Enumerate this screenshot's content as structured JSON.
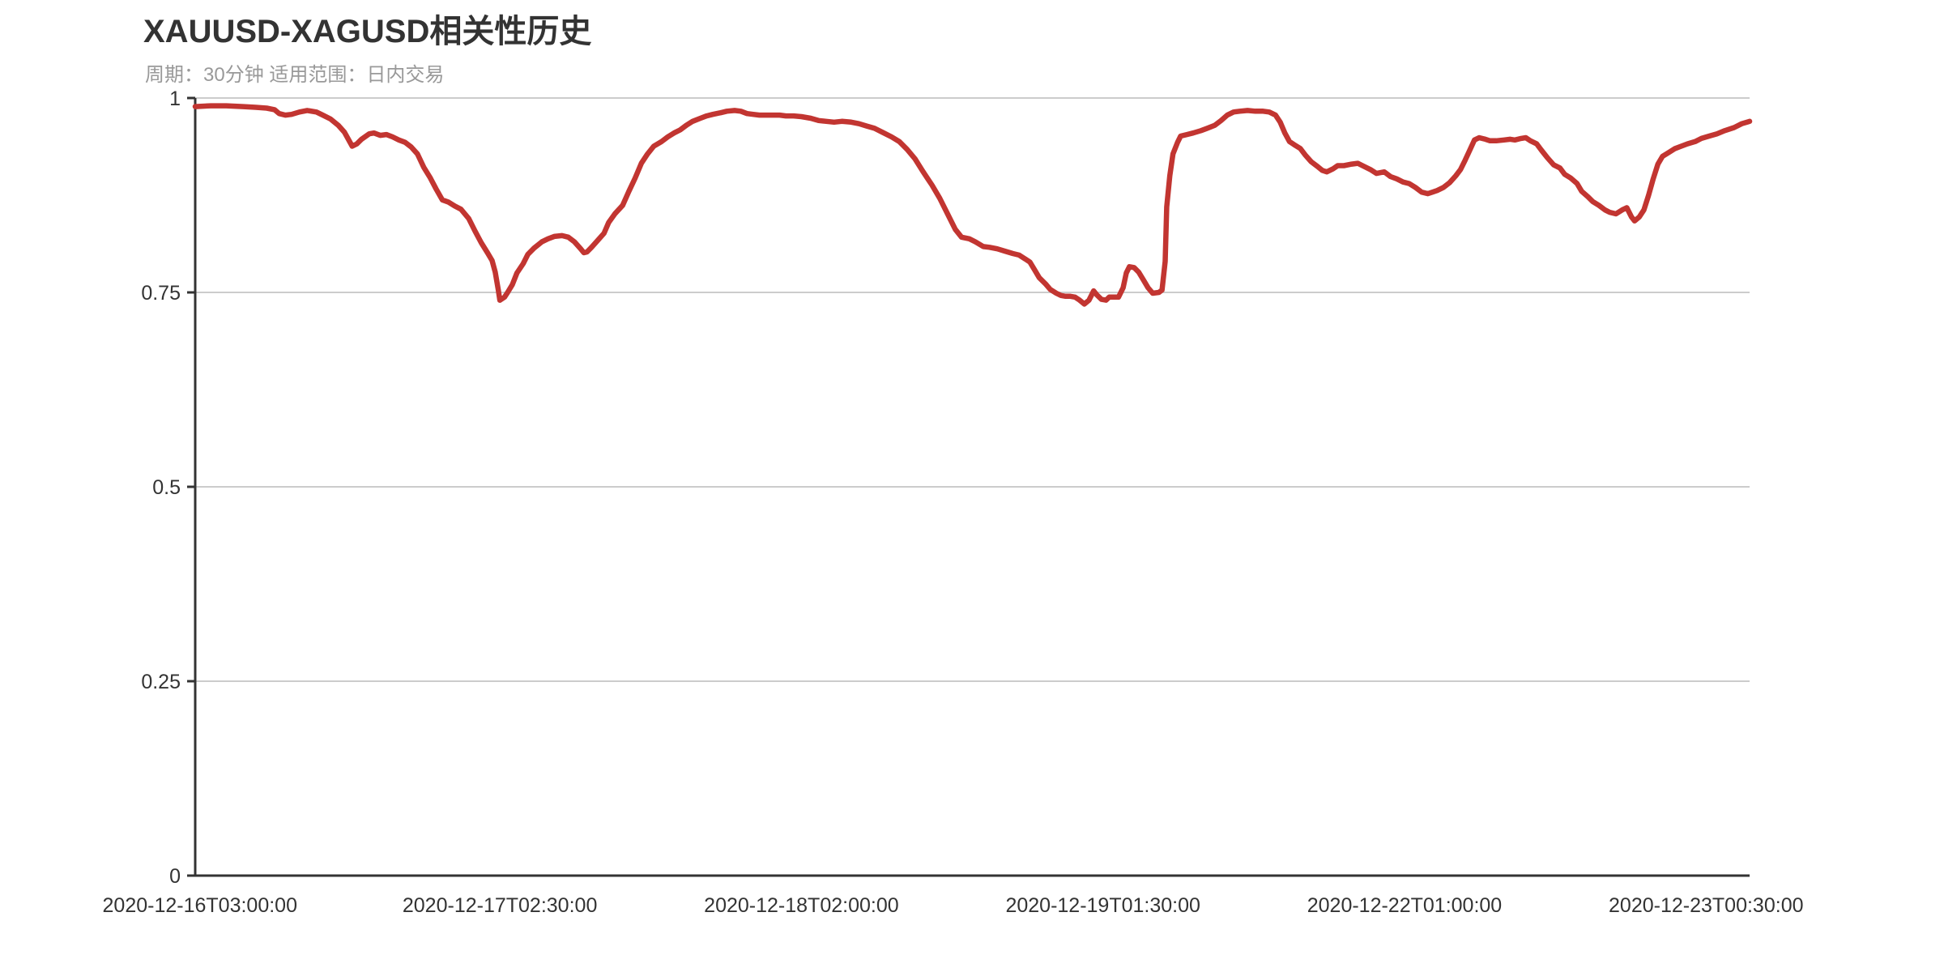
{
  "chart_data": {
    "type": "line",
    "title": "XAUUSD-XAGUSD相关性历史",
    "subtitle": "周期：30分钟 适用范围：日内交易",
    "xlabel": "",
    "ylabel": "",
    "ylim": [
      0,
      1
    ],
    "grid": true,
    "legend_position": "none",
    "colors": {
      "line": "#c23531",
      "grid": "#cccccc",
      "axis": "#333333",
      "label": "#333333",
      "title_text": "#333333",
      "subtitle_text": "#999999",
      "background": "#ffffff"
    },
    "yticks": [
      {
        "value": 0,
        "label": "0"
      },
      {
        "value": 0.25,
        "label": "0.25"
      },
      {
        "value": 0.5,
        "label": "0.5"
      },
      {
        "value": 0.75,
        "label": "0.75"
      },
      {
        "value": 1,
        "label": "1"
      }
    ],
    "xticks": [
      {
        "pos": 0.003,
        "label": "2020-12-16T03:00:00"
      },
      {
        "pos": 0.196,
        "label": "2020-12-17T02:30:00"
      },
      {
        "pos": 0.39,
        "label": "2020-12-18T02:00:00"
      },
      {
        "pos": 0.584,
        "label": "2020-12-19T01:30:00"
      },
      {
        "pos": 0.778,
        "label": "2020-12-22T01:00:00"
      },
      {
        "pos": 0.972,
        "label": "2020-12-23T00:30:00"
      }
    ],
    "series": [
      {
        "name": "XAUUSD-XAGUSD相关性",
        "points": [
          [
            0.0,
            0.989
          ],
          [
            0.01,
            0.99
          ],
          [
            0.02,
            0.99
          ],
          [
            0.031,
            0.989
          ],
          [
            0.039,
            0.988
          ],
          [
            0.046,
            0.987
          ],
          [
            0.051,
            0.985
          ],
          [
            0.054,
            0.98
          ],
          [
            0.058,
            0.978
          ],
          [
            0.062,
            0.979
          ],
          [
            0.067,
            0.982
          ],
          [
            0.072,
            0.984
          ],
          [
            0.078,
            0.982
          ],
          [
            0.082,
            0.978
          ],
          [
            0.087,
            0.973
          ],
          [
            0.092,
            0.965
          ],
          [
            0.096,
            0.956
          ],
          [
            0.101,
            0.938
          ],
          [
            0.104,
            0.941
          ],
          [
            0.107,
            0.947
          ],
          [
            0.112,
            0.954
          ],
          [
            0.115,
            0.955
          ],
          [
            0.119,
            0.952
          ],
          [
            0.123,
            0.953
          ],
          [
            0.127,
            0.95
          ],
          [
            0.131,
            0.946
          ],
          [
            0.135,
            0.943
          ],
          [
            0.139,
            0.937
          ],
          [
            0.143,
            0.928
          ],
          [
            0.147,
            0.911
          ],
          [
            0.151,
            0.898
          ],
          [
            0.155,
            0.883
          ],
          [
            0.159,
            0.869
          ],
          [
            0.163,
            0.866
          ],
          [
            0.167,
            0.861
          ],
          [
            0.171,
            0.857
          ],
          [
            0.176,
            0.845
          ],
          [
            0.18,
            0.829
          ],
          [
            0.184,
            0.814
          ],
          [
            0.188,
            0.801
          ],
          [
            0.191,
            0.791
          ],
          [
            0.193,
            0.776
          ],
          [
            0.195,
            0.753
          ],
          [
            0.196,
            0.74
          ],
          [
            0.199,
            0.744
          ],
          [
            0.201,
            0.75
          ],
          [
            0.204,
            0.76
          ],
          [
            0.207,
            0.775
          ],
          [
            0.211,
            0.787
          ],
          [
            0.214,
            0.799
          ],
          [
            0.218,
            0.807
          ],
          [
            0.223,
            0.815
          ],
          [
            0.227,
            0.819
          ],
          [
            0.231,
            0.822
          ],
          [
            0.236,
            0.823
          ],
          [
            0.24,
            0.821
          ],
          [
            0.244,
            0.815
          ],
          [
            0.248,
            0.806
          ],
          [
            0.25,
            0.801
          ],
          [
            0.252,
            0.802
          ],
          [
            0.255,
            0.808
          ],
          [
            0.259,
            0.817
          ],
          [
            0.263,
            0.826
          ],
          [
            0.266,
            0.84
          ],
          [
            0.27,
            0.851
          ],
          [
            0.275,
            0.862
          ],
          [
            0.279,
            0.88
          ],
          [
            0.283,
            0.897
          ],
          [
            0.287,
            0.916
          ],
          [
            0.291,
            0.928
          ],
          [
            0.295,
            0.938
          ],
          [
            0.3,
            0.944
          ],
          [
            0.304,
            0.95
          ],
          [
            0.308,
            0.955
          ],
          [
            0.312,
            0.959
          ],
          [
            0.316,
            0.965
          ],
          [
            0.32,
            0.97
          ],
          [
            0.325,
            0.974
          ],
          [
            0.329,
            0.977
          ],
          [
            0.333,
            0.979
          ],
          [
            0.338,
            0.981
          ],
          [
            0.342,
            0.983
          ],
          [
            0.347,
            0.984
          ],
          [
            0.351,
            0.983
          ],
          [
            0.355,
            0.98
          ],
          [
            0.359,
            0.979
          ],
          [
            0.363,
            0.978
          ],
          [
            0.367,
            0.978
          ],
          [
            0.372,
            0.978
          ],
          [
            0.376,
            0.978
          ],
          [
            0.38,
            0.977
          ],
          [
            0.385,
            0.977
          ],
          [
            0.39,
            0.976
          ],
          [
            0.396,
            0.974
          ],
          [
            0.401,
            0.971
          ],
          [
            0.406,
            0.97
          ],
          [
            0.411,
            0.969
          ],
          [
            0.416,
            0.97
          ],
          [
            0.422,
            0.969
          ],
          [
            0.427,
            0.967
          ],
          [
            0.432,
            0.964
          ],
          [
            0.437,
            0.961
          ],
          [
            0.442,
            0.956
          ],
          [
            0.448,
            0.95
          ],
          [
            0.453,
            0.944
          ],
          [
            0.458,
            0.934
          ],
          [
            0.463,
            0.922
          ],
          [
            0.468,
            0.906
          ],
          [
            0.474,
            0.888
          ],
          [
            0.479,
            0.871
          ],
          [
            0.484,
            0.851
          ],
          [
            0.489,
            0.831
          ],
          [
            0.493,
            0.821
          ],
          [
            0.498,
            0.819
          ],
          [
            0.502,
            0.815
          ],
          [
            0.507,
            0.809
          ],
          [
            0.511,
            0.808
          ],
          [
            0.516,
            0.806
          ],
          [
            0.521,
            0.803
          ],
          [
            0.526,
            0.8
          ],
          [
            0.53,
            0.798
          ],
          [
            0.534,
            0.793
          ],
          [
            0.537,
            0.789
          ],
          [
            0.54,
            0.779
          ],
          [
            0.543,
            0.769
          ],
          [
            0.547,
            0.761
          ],
          [
            0.55,
            0.754
          ],
          [
            0.554,
            0.749
          ],
          [
            0.557,
            0.746
          ],
          [
            0.56,
            0.745
          ],
          [
            0.563,
            0.745
          ],
          [
            0.566,
            0.744
          ],
          [
            0.569,
            0.74
          ],
          [
            0.572,
            0.735
          ],
          [
            0.575,
            0.74
          ],
          [
            0.578,
            0.752
          ],
          [
            0.58,
            0.747
          ],
          [
            0.583,
            0.741
          ],
          [
            0.586,
            0.74
          ],
          [
            0.588,
            0.744
          ],
          [
            0.591,
            0.744
          ],
          [
            0.594,
            0.744
          ],
          [
            0.597,
            0.756
          ],
          [
            0.599,
            0.775
          ],
          [
            0.601,
            0.783
          ],
          [
            0.604,
            0.782
          ],
          [
            0.607,
            0.776
          ],
          [
            0.61,
            0.766
          ],
          [
            0.613,
            0.756
          ],
          [
            0.616,
            0.749
          ],
          [
            0.62,
            0.75
          ],
          [
            0.622,
            0.753
          ],
          [
            0.624,
            0.79
          ],
          [
            0.625,
            0.86
          ],
          [
            0.627,
            0.9
          ],
          [
            0.629,
            0.928
          ],
          [
            0.632,
            0.943
          ],
          [
            0.634,
            0.951
          ],
          [
            0.638,
            0.953
          ],
          [
            0.642,
            0.955
          ],
          [
            0.647,
            0.958
          ],
          [
            0.651,
            0.961
          ],
          [
            0.656,
            0.965
          ],
          [
            0.66,
            0.971
          ],
          [
            0.664,
            0.978
          ],
          [
            0.668,
            0.982
          ],
          [
            0.672,
            0.983
          ],
          [
            0.677,
            0.984
          ],
          [
            0.682,
            0.983
          ],
          [
            0.687,
            0.983
          ],
          [
            0.691,
            0.982
          ],
          [
            0.695,
            0.978
          ],
          [
            0.698,
            0.969
          ],
          [
            0.701,
            0.955
          ],
          [
            0.704,
            0.944
          ],
          [
            0.707,
            0.94
          ],
          [
            0.711,
            0.935
          ],
          [
            0.714,
            0.927
          ],
          [
            0.718,
            0.918
          ],
          [
            0.722,
            0.912
          ],
          [
            0.725,
            0.907
          ],
          [
            0.728,
            0.905
          ],
          [
            0.732,
            0.909
          ],
          [
            0.735,
            0.913
          ],
          [
            0.739,
            0.913
          ],
          [
            0.744,
            0.915
          ],
          [
            0.748,
            0.916
          ],
          [
            0.752,
            0.912
          ],
          [
            0.756,
            0.908
          ],
          [
            0.76,
            0.903
          ],
          [
            0.765,
            0.905
          ],
          [
            0.769,
            0.899
          ],
          [
            0.773,
            0.896
          ],
          [
            0.777,
            0.892
          ],
          [
            0.781,
            0.89
          ],
          [
            0.785,
            0.885
          ],
          [
            0.789,
            0.879
          ],
          [
            0.793,
            0.877
          ],
          [
            0.796,
            0.879
          ],
          [
            0.799,
            0.881
          ],
          [
            0.803,
            0.885
          ],
          [
            0.807,
            0.891
          ],
          [
            0.811,
            0.9
          ],
          [
            0.814,
            0.908
          ],
          [
            0.817,
            0.92
          ],
          [
            0.82,
            0.933
          ],
          [
            0.823,
            0.946
          ],
          [
            0.826,
            0.949
          ],
          [
            0.83,
            0.947
          ],
          [
            0.833,
            0.945
          ],
          [
            0.837,
            0.945
          ],
          [
            0.842,
            0.946
          ],
          [
            0.846,
            0.947
          ],
          [
            0.849,
            0.946
          ],
          [
            0.853,
            0.948
          ],
          [
            0.856,
            0.949
          ],
          [
            0.859,
            0.945
          ],
          [
            0.863,
            0.941
          ],
          [
            0.866,
            0.933
          ],
          [
            0.87,
            0.923
          ],
          [
            0.874,
            0.914
          ],
          [
            0.878,
            0.91
          ],
          [
            0.881,
            0.902
          ],
          [
            0.885,
            0.897
          ],
          [
            0.889,
            0.89
          ],
          [
            0.892,
            0.88
          ],
          [
            0.896,
            0.873
          ],
          [
            0.899,
            0.867
          ],
          [
            0.903,
            0.862
          ],
          [
            0.907,
            0.856
          ],
          [
            0.91,
            0.853
          ],
          [
            0.914,
            0.851
          ],
          [
            0.918,
            0.856
          ],
          [
            0.921,
            0.859
          ],
          [
            0.924,
            0.847
          ],
          [
            0.926,
            0.842
          ],
          [
            0.929,
            0.847
          ],
          [
            0.932,
            0.856
          ],
          [
            0.935,
            0.875
          ],
          [
            0.938,
            0.896
          ],
          [
            0.941,
            0.915
          ],
          [
            0.944,
            0.925
          ],
          [
            0.948,
            0.93
          ],
          [
            0.952,
            0.935
          ],
          [
            0.956,
            0.938
          ],
          [
            0.96,
            0.941
          ],
          [
            0.965,
            0.944
          ],
          [
            0.969,
            0.948
          ],
          [
            0.974,
            0.951
          ],
          [
            0.979,
            0.954
          ],
          [
            0.984,
            0.958
          ],
          [
            0.99,
            0.962
          ],
          [
            0.995,
            0.967
          ],
          [
            1.0,
            0.97
          ]
        ]
      }
    ]
  }
}
